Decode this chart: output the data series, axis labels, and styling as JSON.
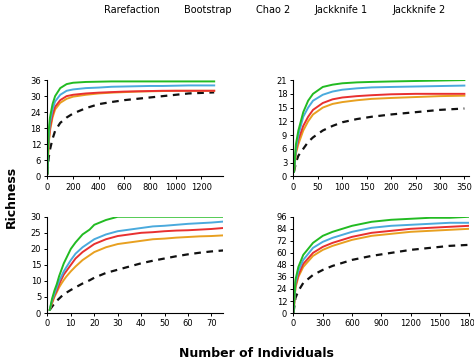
{
  "legend_labels": [
    "Rarefaction",
    "Bootstrap",
    "Chao 2",
    "Jackknife 1",
    "Jackknife 2"
  ],
  "legend_colors": [
    "#111111",
    "#E8A020",
    "#E83030",
    "#4AAADD",
    "#22BB22"
  ],
  "xlabel": "Number of Individuals",
  "ylabel": "Richness",
  "bg_color": "#FFFFFF",
  "panels": [
    {
      "xlim": [
        0,
        1370
      ],
      "ylim": [
        0,
        36
      ],
      "xticks": [
        0,
        200,
        400,
        600,
        800,
        1000,
        1200
      ],
      "yticks": [
        0,
        6,
        12,
        18,
        24,
        30,
        36
      ],
      "rarefaction": {
        "x": [
          1,
          5,
          10,
          20,
          40,
          60,
          100,
          150,
          200,
          300,
          400,
          500,
          600,
          700,
          800,
          900,
          1000,
          1100,
          1200,
          1300
        ],
        "y": [
          1,
          4,
          7,
          10,
          14,
          17,
          20,
          22,
          23.5,
          25.5,
          27,
          27.8,
          28.5,
          29,
          29.5,
          30,
          30.5,
          31,
          31.2,
          31.4
        ]
      },
      "bootstrap": {
        "x": [
          1,
          5,
          10,
          20,
          40,
          60,
          100,
          150,
          200,
          300,
          400,
          500,
          600,
          700,
          800,
          900,
          1000,
          1100,
          1200,
          1300
        ],
        "y": [
          1,
          7,
          12,
          17,
          22,
          25,
          27.5,
          29,
          29.8,
          30.5,
          31,
          31.3,
          31.5,
          31.7,
          31.8,
          31.9,
          32,
          32,
          32,
          32
        ]
      },
      "chao2": {
        "x": [
          1,
          5,
          10,
          20,
          40,
          60,
          100,
          150,
          200,
          300,
          400,
          500,
          600,
          700,
          800,
          900,
          1000,
          1100,
          1200,
          1300
        ],
        "y": [
          1,
          8,
          13,
          18,
          23,
          26,
          28.5,
          30,
          30.5,
          31,
          31.3,
          31.5,
          31.7,
          31.8,
          31.9,
          32,
          32,
          32,
          32,
          32
        ]
      },
      "jackknife1": {
        "x": [
          1,
          5,
          10,
          20,
          40,
          60,
          100,
          150,
          200,
          300,
          400,
          500,
          600,
          700,
          800,
          900,
          1000,
          1100,
          1200,
          1300
        ],
        "y": [
          1,
          9,
          15,
          20,
          25,
          28,
          30.5,
          32,
          32.5,
          33,
          33.2,
          33.5,
          33.6,
          33.7,
          33.8,
          33.8,
          33.9,
          34,
          34,
          34
        ]
      },
      "jackknife2": {
        "x": [
          1,
          5,
          10,
          20,
          40,
          60,
          100,
          150,
          200,
          300,
          400,
          500,
          600,
          700,
          800,
          900,
          1000,
          1100,
          1200,
          1300
        ],
        "y": [
          1,
          10,
          17,
          22,
          27,
          30,
          33,
          34.5,
          35,
          35.3,
          35.4,
          35.5,
          35.5,
          35.5,
          35.5,
          35.5,
          35.5,
          35.5,
          35.5,
          35.5
        ]
      }
    },
    {
      "xlim": [
        0,
        360
      ],
      "ylim": [
        0,
        21
      ],
      "xticks": [
        0,
        50,
        100,
        150,
        200,
        250,
        300,
        350
      ],
      "yticks": [
        0,
        3,
        6,
        9,
        12,
        15,
        18,
        21
      ],
      "rarefaction": {
        "x": [
          1,
          5,
          10,
          20,
          30,
          40,
          60,
          80,
          100,
          130,
          160,
          200,
          250,
          300,
          350
        ],
        "y": [
          1,
          3,
          4.5,
          6,
          7.5,
          8.5,
          10,
          11,
          11.8,
          12.5,
          13,
          13.5,
          14,
          14.5,
          14.8
        ]
      },
      "bootstrap": {
        "x": [
          1,
          5,
          10,
          20,
          30,
          40,
          60,
          80,
          100,
          130,
          160,
          200,
          250,
          300,
          350
        ],
        "y": [
          1,
          5,
          7,
          10,
          12,
          13.5,
          15,
          15.8,
          16.2,
          16.6,
          16.9,
          17.1,
          17.3,
          17.5,
          17.6
        ]
      },
      "chao2": {
        "x": [
          1,
          5,
          10,
          20,
          30,
          40,
          60,
          80,
          100,
          130,
          160,
          200,
          250,
          300,
          350
        ],
        "y": [
          1,
          5.5,
          8,
          11,
          13,
          14.5,
          16,
          16.8,
          17.2,
          17.5,
          17.7,
          17.9,
          18,
          18,
          18
        ]
      },
      "jackknife1": {
        "x": [
          1,
          5,
          10,
          20,
          30,
          40,
          60,
          80,
          100,
          130,
          160,
          200,
          250,
          300,
          350
        ],
        "y": [
          1,
          6,
          9,
          13,
          15,
          16.5,
          17.8,
          18.5,
          18.9,
          19.2,
          19.4,
          19.5,
          19.6,
          19.7,
          19.8
        ]
      },
      "jackknife2": {
        "x": [
          1,
          5,
          10,
          20,
          30,
          40,
          60,
          80,
          100,
          130,
          160,
          200,
          250,
          300,
          350
        ],
        "y": [
          1,
          7,
          10,
          14,
          16.5,
          18,
          19.5,
          20,
          20.3,
          20.5,
          20.6,
          20.7,
          20.8,
          20.9,
          21
        ]
      }
    },
    {
      "xlim": [
        0,
        75
      ],
      "ylim": [
        0,
        30
      ],
      "xticks": [
        0,
        10,
        20,
        30,
        40,
        50,
        60,
        70
      ],
      "yticks": [
        0,
        5,
        10,
        15,
        20,
        25,
        30
      ],
      "rarefaction": {
        "x": [
          1,
          2,
          3,
          4,
          5,
          6,
          7,
          8,
          10,
          12,
          15,
          18,
          20,
          25,
          30,
          35,
          40,
          45,
          50,
          55,
          60,
          65,
          70,
          75
        ],
        "y": [
          1,
          2,
          3,
          3.8,
          4.5,
          5.2,
          5.8,
          6.3,
          7.2,
          8,
          9.2,
          10.2,
          11,
          12.5,
          13.5,
          14.5,
          15.5,
          16.3,
          17,
          17.7,
          18.3,
          18.8,
          19.2,
          19.5
        ]
      },
      "bootstrap": {
        "x": [
          1,
          2,
          3,
          4,
          5,
          6,
          7,
          8,
          10,
          12,
          15,
          18,
          20,
          25,
          30,
          35,
          40,
          45,
          50,
          55,
          60,
          65,
          70,
          75
        ],
        "y": [
          1,
          3,
          5,
          6.5,
          8,
          9.2,
          10.3,
          11.3,
          13,
          14.5,
          16.5,
          18,
          19,
          20.5,
          21.5,
          22,
          22.5,
          23,
          23.2,
          23.5,
          23.7,
          23.9,
          24,
          24.2
        ]
      },
      "chao2": {
        "x": [
          1,
          2,
          3,
          4,
          5,
          6,
          7,
          8,
          10,
          12,
          15,
          18,
          20,
          25,
          30,
          35,
          40,
          45,
          50,
          55,
          60,
          65,
          70,
          75
        ],
        "y": [
          1,
          3.5,
          5.5,
          7,
          9,
          10.5,
          12,
          13,
          15,
          17,
          19,
          20.5,
          21.5,
          23,
          24,
          24.5,
          25,
          25.2,
          25.5,
          25.7,
          25.8,
          26,
          26.2,
          26.5
        ]
      },
      "jackknife1": {
        "x": [
          1,
          2,
          3,
          4,
          5,
          6,
          7,
          8,
          10,
          12,
          15,
          18,
          20,
          25,
          30,
          35,
          40,
          45,
          50,
          55,
          60,
          65,
          70,
          75
        ],
        "y": [
          1,
          4,
          6,
          8,
          10,
          11.5,
          13,
          14.2,
          16.5,
          18.5,
          20.5,
          22,
          23,
          24.5,
          25.5,
          26,
          26.5,
          27,
          27.2,
          27.5,
          27.8,
          28,
          28.2,
          28.5
        ]
      },
      "jackknife2": {
        "x": [
          1,
          2,
          3,
          4,
          5,
          6,
          7,
          8,
          10,
          12,
          15,
          18,
          20,
          25,
          30,
          35,
          40,
          45,
          50,
          55,
          60,
          65,
          70,
          75
        ],
        "y": [
          1,
          4.5,
          7,
          9,
          11.5,
          13.5,
          15.5,
          17,
          20,
          22,
          24.5,
          26,
          27.5,
          29,
          30,
          30,
          30,
          30,
          30,
          30,
          30,
          30,
          30,
          30
        ]
      }
    },
    {
      "xlim": [
        0,
        1800
      ],
      "ylim": [
        0,
        96
      ],
      "xticks": [
        0,
        300,
        600,
        900,
        1200,
        1500,
        1800
      ],
      "yticks": [
        0,
        12,
        24,
        36,
        48,
        60,
        72,
        84,
        96
      ],
      "rarefaction": {
        "x": [
          1,
          20,
          50,
          100,
          200,
          300,
          400,
          500,
          600,
          700,
          800,
          1000,
          1200,
          1400,
          1600,
          1800
        ],
        "y": [
          1,
          15,
          22,
          30,
          38,
          43,
          47,
          50,
          53,
          55,
          57,
          60,
          63,
          65,
          67,
          68
        ]
      },
      "bootstrap": {
        "x": [
          1,
          20,
          50,
          100,
          200,
          300,
          400,
          500,
          600,
          700,
          800,
          1000,
          1200,
          1400,
          1600,
          1800
        ],
        "y": [
          1,
          25,
          36,
          46,
          57,
          63,
          67,
          70,
          73,
          75,
          77,
          79,
          81,
          82,
          83,
          84
        ]
      },
      "chao2": {
        "x": [
          1,
          20,
          50,
          100,
          200,
          300,
          400,
          500,
          600,
          700,
          800,
          1000,
          1200,
          1400,
          1600,
          1800
        ],
        "y": [
          1,
          27,
          38,
          49,
          60,
          66,
          70,
          73,
          76,
          78,
          80,
          82,
          84,
          85,
          86,
          87
        ]
      },
      "jackknife1": {
        "x": [
          1,
          20,
          50,
          100,
          200,
          300,
          400,
          500,
          600,
          700,
          800,
          1000,
          1200,
          1400,
          1600,
          1800
        ],
        "y": [
          1,
          30,
          42,
          53,
          65,
          71,
          75,
          78,
          81,
          83,
          85,
          87,
          88,
          89,
          90,
          90
        ]
      },
      "jackknife2": {
        "x": [
          1,
          20,
          50,
          100,
          200,
          300,
          400,
          500,
          600,
          700,
          800,
          1000,
          1200,
          1400,
          1600,
          1800
        ],
        "y": [
          1,
          33,
          46,
          58,
          70,
          77,
          81,
          84,
          87,
          89,
          91,
          93,
          94,
          95,
          95,
          96
        ]
      }
    }
  ]
}
